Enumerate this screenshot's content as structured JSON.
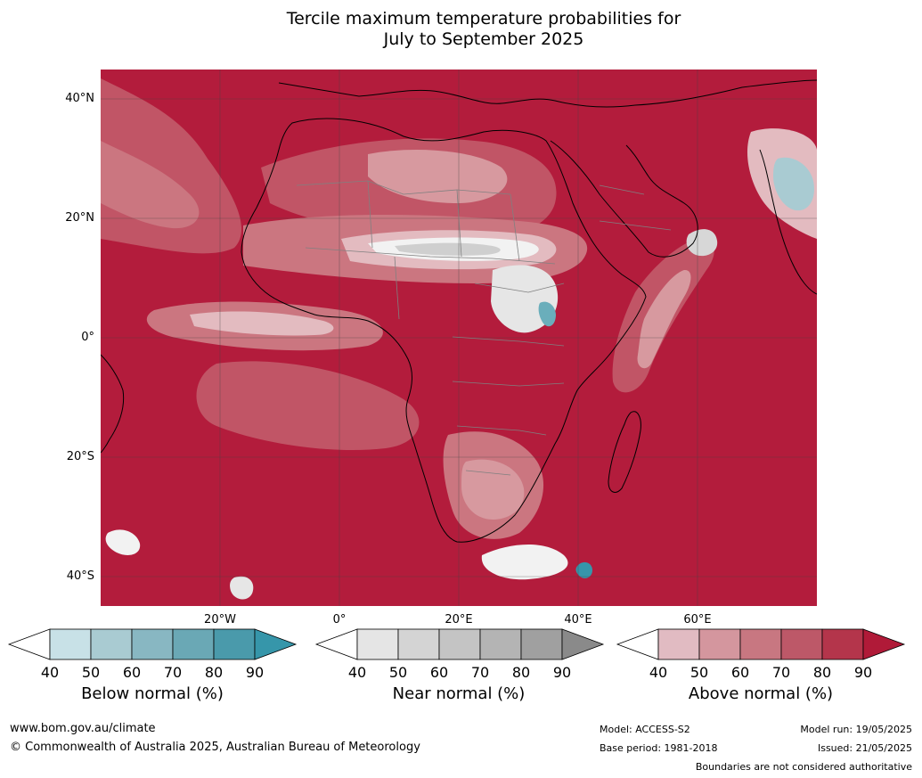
{
  "title": {
    "line1": "Tercile maximum temperature probabilities for",
    "line2": "July to September 2025"
  },
  "map": {
    "latitude_labels": [
      "40°N",
      "20°N",
      "0°",
      "20°S",
      "40°S"
    ],
    "longitude_labels": [
      "20°W",
      "0°",
      "20°E",
      "40°E",
      "60°E"
    ],
    "dominant_category": "Above normal",
    "colors": {
      "base": "#b31c3c",
      "above_80": "#b83049",
      "above_70": "#c15566",
      "above_60": "#cb7680",
      "above_50": "#d7999f",
      "above_40": "#e3bbc0",
      "near_white": "#f2f2f2",
      "near_grey": "#cfcfcf",
      "below_teal": "#6aaebb",
      "country_borders": "#808080",
      "coastline": "#000000",
      "graticule": "#444444"
    }
  },
  "legends": [
    {
      "name": "Below normal (%)",
      "ticks": [
        "40",
        "50",
        "60",
        "70",
        "80",
        "90"
      ],
      "colors": [
        "#ffffff",
        "#c8e1e7",
        "#a9cbd2",
        "#88b7c2",
        "#6aa8b5",
        "#4a9aab",
        "#3696aa"
      ]
    },
    {
      "name": "Near normal (%)",
      "ticks": [
        "40",
        "50",
        "60",
        "70",
        "80",
        "90"
      ],
      "colors": [
        "#ffffff",
        "#e5e5e5",
        "#d4d4d4",
        "#c4c4c4",
        "#b4b4b4",
        "#a0a0a0",
        "#8a8a8a"
      ]
    },
    {
      "name": "Above normal (%)",
      "ticks": [
        "40",
        "50",
        "60",
        "70",
        "80",
        "90"
      ],
      "colors": [
        "#ffffff",
        "#e1bbc2",
        "#d4969e",
        "#c87781",
        "#bd5868",
        "#b4354b",
        "#b01a38"
      ]
    }
  ],
  "footer": {
    "website": "www.bom.gov.au/climate",
    "copyright": "© Commonwealth of Australia 2025, Australian Bureau of Meteorology",
    "model": "Model: ACCESS-S2",
    "base_period": "Base period: 1981-2018",
    "model_run": "Model run: 19/05/2025",
    "issued": "Issued: 21/05/2025",
    "disclaimer": "Boundaries are not considered authoritative"
  }
}
